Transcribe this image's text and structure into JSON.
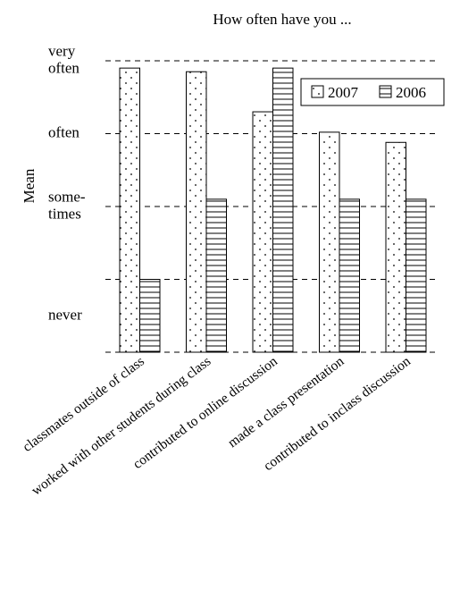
{
  "chart_data": {
    "type": "bar",
    "title": "How often have you ...",
    "xlabel": "",
    "ylabel": "Mean",
    "ylim": [
      0.0,
      3.8
    ],
    "grid": true,
    "gridlines": [
      0.0,
      1.0,
      2.0,
      3.0,
      4.0
    ],
    "yticks": [
      {
        "value": 0.5,
        "lines": [
          "never"
        ]
      },
      {
        "value": 2.0,
        "lines": [
          "some-",
          "times"
        ]
      },
      {
        "value": 3.0,
        "lines": [
          "often"
        ]
      },
      {
        "value": 4.0,
        "lines": [
          "very",
          "often"
        ]
      }
    ],
    "categories": [
      "classmates outside of class",
      "worked with other students during class",
      "contributed to online discussion",
      "made a class presentation",
      "contributed to inclass discussion"
    ],
    "series": [
      {
        "name": "2007",
        "values": [
          3.9,
          3.85,
          3.3,
          3.02,
          2.88
        ],
        "pattern": "dots"
      },
      {
        "name": "2006",
        "values": [
          1.0,
          2.1,
          3.9,
          2.1,
          2.1
        ],
        "pattern": "hlines"
      }
    ],
    "legend_position": "top-right",
    "colors": {
      "stroke": "#000000",
      "background": "#ffffff"
    }
  }
}
